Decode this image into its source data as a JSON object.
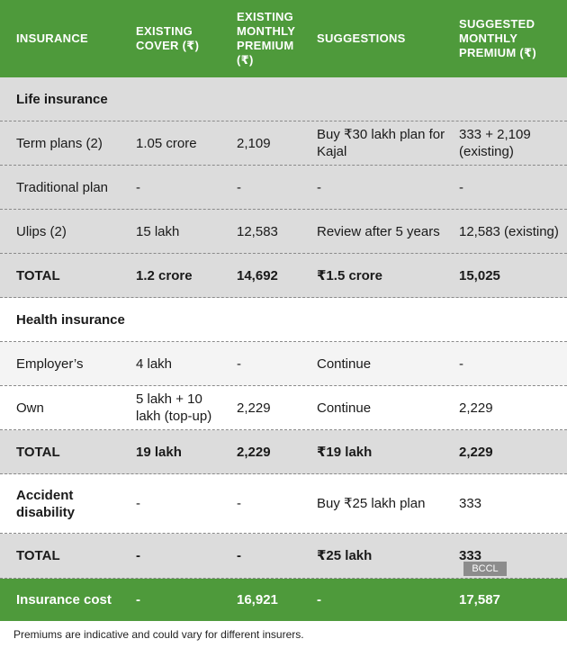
{
  "table": {
    "header": [
      "INSURANCE",
      "EXISTING COVER (₹)",
      "EXISTING MONTHLY PREMIUM (₹)",
      "SUGGESTIONS",
      "SUGGESTED MONTHLY PREMIUM (₹)"
    ],
    "rows": [
      [
        "Life insurance"
      ],
      [
        "Term plans (2)",
        "1.05 crore",
        "2,109",
        "Buy ₹30 lakh plan for Kajal",
        "333 + 2,109 (existing)"
      ],
      [
        "Traditional plan",
        "-",
        "-",
        "-",
        "-"
      ],
      [
        "Ulips (2)",
        "15 lakh",
        "12,583",
        "Review after 5 years",
        "12,583 (existing)"
      ],
      [
        "TOTAL",
        "1.2 crore",
        "14,692",
        "₹1.5 crore",
        "15,025"
      ],
      [
        "Health insurance"
      ],
      [
        "Employer’s",
        "4 lakh",
        "-",
        "Continue",
        "-"
      ],
      [
        "Own",
        "5 lakh + 10 lakh (top-up)",
        "2,229",
        "Continue",
        "2,229"
      ],
      [
        "TOTAL",
        "19 lakh",
        "2,229",
        "₹19 lakh",
        "2,229"
      ],
      [
        "Accident disability",
        "-",
        "-",
        "Buy ₹25 lakh plan",
        "333"
      ],
      [
        "TOTAL",
        "-",
        "-",
        "₹25 lakh",
        "333"
      ]
    ],
    "footer_row": [
      "Insurance cost",
      "-",
      "16,921",
      "-",
      "17,587"
    ]
  },
  "watermark": "BCCL",
  "footnote": "Premiums are indicative and could vary for different insurers."
}
